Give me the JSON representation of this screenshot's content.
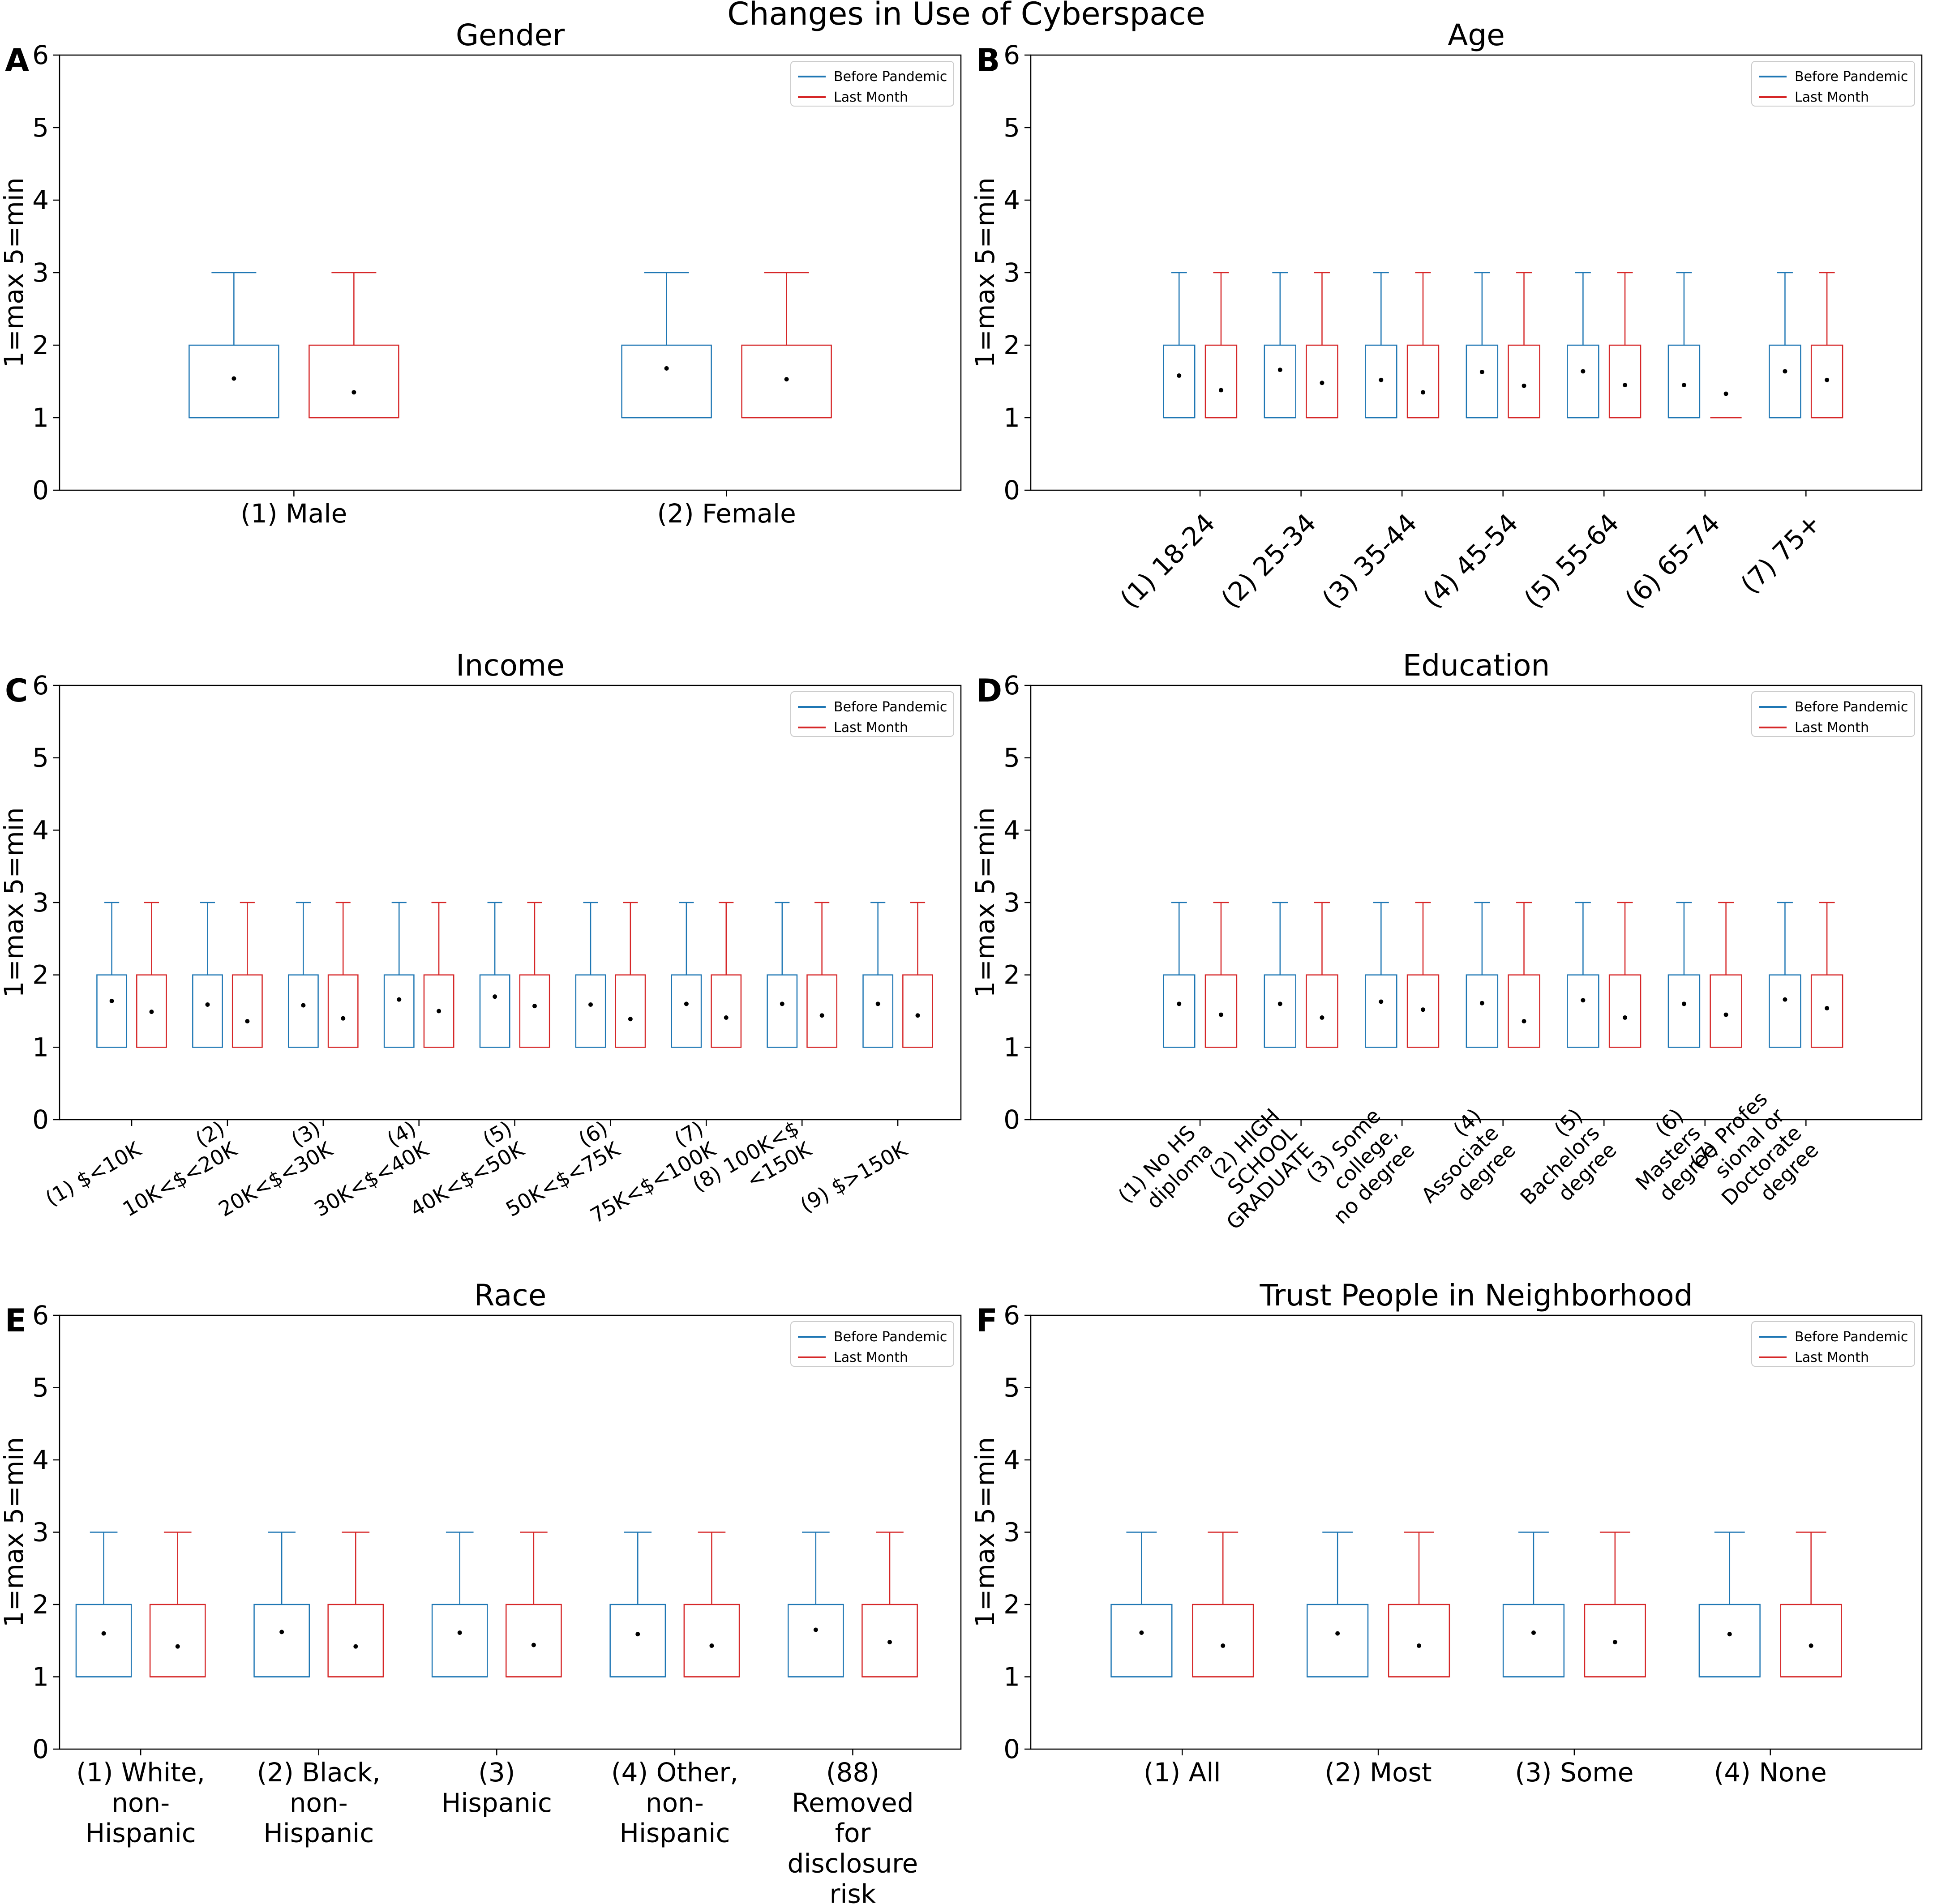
{
  "figure_title": "Changes in Use of Cyberspace",
  "colors": {
    "before": "#1f77b4",
    "last": "#d62728",
    "axis": "#000000",
    "mean_dot": "#000000"
  },
  "chart_data": [
    {
      "panel": "A",
      "type": "box",
      "title": "Gender",
      "ylabel": "1=max 5=min",
      "ylim": [
        0,
        6
      ],
      "yticks": [
        "0",
        "1",
        "2",
        "3",
        "4",
        "5",
        "6"
      ],
      "legend": {
        "placement": "top-right",
        "entries": [
          "Before Pandemic",
          "Last Month"
        ]
      },
      "tick_rotation": 0,
      "categories": [
        [
          "(1) Male"
        ],
        [
          "(2) Female"
        ]
      ],
      "series": [
        {
          "name": "Before Pandemic",
          "boxes": [
            {
              "q1": 1,
              "median": 1,
              "q3": 2,
              "whislo": 1,
              "whishi": 3,
              "mean": 1.54
            },
            {
              "q1": 1,
              "median": 1,
              "q3": 2,
              "whislo": 1,
              "whishi": 3,
              "mean": 1.68
            }
          ]
        },
        {
          "name": "Last Month",
          "boxes": [
            {
              "q1": 1,
              "median": 1,
              "q3": 2,
              "whislo": 1,
              "whishi": 3,
              "mean": 1.35
            },
            {
              "q1": 1,
              "median": 1,
              "q3": 2,
              "whislo": 1,
              "whishi": 3,
              "mean": 1.53
            }
          ]
        }
      ]
    },
    {
      "panel": "B",
      "type": "box",
      "title": "Age",
      "ylabel": "1=max 5=min",
      "ylim": [
        0,
        6
      ],
      "yticks": [
        "0",
        "1",
        "2",
        "3",
        "4",
        "5",
        "6"
      ],
      "legend": {
        "placement": "top-right",
        "entries": [
          "Before Pandemic",
          "Last Month"
        ]
      },
      "tick_rotation": -45,
      "categories": [
        [
          "(1) 18-24"
        ],
        [
          "(2) 25-34"
        ],
        [
          "(3) 35-44"
        ],
        [
          "(4) 45-54"
        ],
        [
          "(5) 55-64"
        ],
        [
          "(6) 65-74"
        ],
        [
          "(7) 75+"
        ]
      ],
      "series": [
        {
          "name": "Before Pandemic",
          "boxes": [
            {
              "q1": 1,
              "median": 1,
              "q3": 2,
              "whislo": 1,
              "whishi": 3,
              "mean": 1.58
            },
            {
              "q1": 1,
              "median": 1,
              "q3": 2,
              "whislo": 1,
              "whishi": 3,
              "mean": 1.66
            },
            {
              "q1": 1,
              "median": 1,
              "q3": 2,
              "whislo": 1,
              "whishi": 3,
              "mean": 1.52
            },
            {
              "q1": 1,
              "median": 1,
              "q3": 2,
              "whislo": 1,
              "whishi": 3,
              "mean": 1.63
            },
            {
              "q1": 1,
              "median": 1,
              "q3": 2,
              "whislo": 1,
              "whishi": 3,
              "mean": 1.64
            },
            {
              "q1": 1,
              "median": 1,
              "q3": 2,
              "whislo": 1,
              "whishi": 3,
              "mean": 1.45
            },
            {
              "q1": 1,
              "median": 1,
              "q3": 2,
              "whislo": 1,
              "whishi": 3,
              "mean": 1.64
            }
          ]
        },
        {
          "name": "Last Month",
          "boxes": [
            {
              "q1": 1,
              "median": 1,
              "q3": 2,
              "whislo": 1,
              "whishi": 3,
              "mean": 1.38
            },
            {
              "q1": 1,
              "median": 1,
              "q3": 2,
              "whislo": 1,
              "whishi": 3,
              "mean": 1.48
            },
            {
              "q1": 1,
              "median": 1,
              "q3": 2,
              "whislo": 1,
              "whishi": 3,
              "mean": 1.35
            },
            {
              "q1": 1,
              "median": 1,
              "q3": 2,
              "whislo": 1,
              "whishi": 3,
              "mean": 1.44
            },
            {
              "q1": 1,
              "median": 1,
              "q3": 2,
              "whislo": 1,
              "whishi": 3,
              "mean": 1.45
            },
            {
              "q1": 1,
              "median": 1,
              "q3": 1,
              "whislo": 1,
              "whishi": 1,
              "mean": 1.33
            },
            {
              "q1": 1,
              "median": 1,
              "q3": 2,
              "whislo": 1,
              "whishi": 3,
              "mean": 1.52
            }
          ]
        }
      ]
    },
    {
      "panel": "C",
      "type": "box",
      "title": "Income",
      "ylabel": "1=max 5=min",
      "ylim": [
        0,
        6
      ],
      "yticks": [
        "0",
        "1",
        "2",
        "3",
        "4",
        "5",
        "6"
      ],
      "legend": {
        "placement": "top-right",
        "entries": [
          "Before Pandemic",
          "Last Month"
        ]
      },
      "tick_rotation": -30,
      "categories": [
        [
          "(1) $<10K"
        ],
        [
          "(2)",
          "10K<$<20K"
        ],
        [
          "(3)",
          "20K<$<30K"
        ],
        [
          "(4)",
          "30K<$<40K"
        ],
        [
          "(5)",
          "40K<$<50K"
        ],
        [
          "(6)",
          "50K<$<75K"
        ],
        [
          "(7)",
          "75K<$<100K"
        ],
        [
          "(8) 100K<$",
          "<150K"
        ],
        [
          "(9) $>150K"
        ]
      ],
      "series": [
        {
          "name": "Before Pandemic",
          "boxes": [
            {
              "q1": 1,
              "median": 1,
              "q3": 2,
              "whislo": 1,
              "whishi": 3,
              "mean": 1.64
            },
            {
              "q1": 1,
              "median": 1,
              "q3": 2,
              "whislo": 1,
              "whishi": 3,
              "mean": 1.59
            },
            {
              "q1": 1,
              "median": 1,
              "q3": 2,
              "whislo": 1,
              "whishi": 3,
              "mean": 1.58
            },
            {
              "q1": 1,
              "median": 1,
              "q3": 2,
              "whislo": 1,
              "whishi": 3,
              "mean": 1.66
            },
            {
              "q1": 1,
              "median": 1,
              "q3": 2,
              "whislo": 1,
              "whishi": 3,
              "mean": 1.7
            },
            {
              "q1": 1,
              "median": 1,
              "q3": 2,
              "whislo": 1,
              "whishi": 3,
              "mean": 1.59
            },
            {
              "q1": 1,
              "median": 1,
              "q3": 2,
              "whislo": 1,
              "whishi": 3,
              "mean": 1.6
            },
            {
              "q1": 1,
              "median": 1,
              "q3": 2,
              "whislo": 1,
              "whishi": 3,
              "mean": 1.6
            },
            {
              "q1": 1,
              "median": 1,
              "q3": 2,
              "whislo": 1,
              "whishi": 3,
              "mean": 1.6
            }
          ]
        },
        {
          "name": "Last Month",
          "boxes": [
            {
              "q1": 1,
              "median": 1,
              "q3": 2,
              "whislo": 1,
              "whishi": 3,
              "mean": 1.49
            },
            {
              "q1": 1,
              "median": 1,
              "q3": 2,
              "whislo": 1,
              "whishi": 3,
              "mean": 1.36
            },
            {
              "q1": 1,
              "median": 1,
              "q3": 2,
              "whislo": 1,
              "whishi": 3,
              "mean": 1.4
            },
            {
              "q1": 1,
              "median": 1,
              "q3": 2,
              "whislo": 1,
              "whishi": 3,
              "mean": 1.5
            },
            {
              "q1": 1,
              "median": 1,
              "q3": 2,
              "whislo": 1,
              "whishi": 3,
              "mean": 1.57
            },
            {
              "q1": 1,
              "median": 1,
              "q3": 2,
              "whislo": 1,
              "whishi": 3,
              "mean": 1.39
            },
            {
              "q1": 1,
              "median": 1,
              "q3": 2,
              "whislo": 1,
              "whishi": 3,
              "mean": 1.41
            },
            {
              "q1": 1,
              "median": 1,
              "q3": 2,
              "whislo": 1,
              "whishi": 3,
              "mean": 1.44
            },
            {
              "q1": 1,
              "median": 1,
              "q3": 2,
              "whislo": 1,
              "whishi": 3,
              "mean": 1.44
            }
          ]
        }
      ]
    },
    {
      "panel": "D",
      "type": "box",
      "title": "Education",
      "ylabel": "1=max 5=min",
      "ylim": [
        0,
        6
      ],
      "yticks": [
        "0",
        "1",
        "2",
        "3",
        "4",
        "5",
        "6"
      ],
      "legend": {
        "placement": "top-right",
        "entries": [
          "Before Pandemic",
          "Last Month"
        ]
      },
      "tick_rotation": -45,
      "categories": [
        [
          "(1) No HS",
          "diploma"
        ],
        [
          "(2) HIGH",
          "SCHOOL",
          "GRADUATE"
        ],
        [
          "(3) Some",
          "college,",
          "no degree"
        ],
        [
          "(4)",
          "Associate",
          "degree"
        ],
        [
          "(5)",
          "Bachelors",
          "degree"
        ],
        [
          "(6)",
          "Masters",
          "degree"
        ],
        [
          "(7) Profes",
          "sional or",
          "Doctorate",
          "degree"
        ]
      ],
      "series": [
        {
          "name": "Before Pandemic",
          "boxes": [
            {
              "q1": 1,
              "median": 1,
              "q3": 2,
              "whislo": 1,
              "whishi": 3,
              "mean": 1.6
            },
            {
              "q1": 1,
              "median": 1,
              "q3": 2,
              "whislo": 1,
              "whishi": 3,
              "mean": 1.6
            },
            {
              "q1": 1,
              "median": 1,
              "q3": 2,
              "whislo": 1,
              "whishi": 3,
              "mean": 1.63
            },
            {
              "q1": 1,
              "median": 1,
              "q3": 2,
              "whislo": 1,
              "whishi": 3,
              "mean": 1.61
            },
            {
              "q1": 1,
              "median": 1,
              "q3": 2,
              "whislo": 1,
              "whishi": 3,
              "mean": 1.65
            },
            {
              "q1": 1,
              "median": 1,
              "q3": 2,
              "whislo": 1,
              "whishi": 3,
              "mean": 1.6
            },
            {
              "q1": 1,
              "median": 1,
              "q3": 2,
              "whislo": 1,
              "whishi": 3,
              "mean": 1.66
            }
          ]
        },
        {
          "name": "Last Month",
          "boxes": [
            {
              "q1": 1,
              "median": 1,
              "q3": 2,
              "whislo": 1,
              "whishi": 3,
              "mean": 1.45
            },
            {
              "q1": 1,
              "median": 1,
              "q3": 2,
              "whislo": 1,
              "whishi": 3,
              "mean": 1.41
            },
            {
              "q1": 1,
              "median": 1,
              "q3": 2,
              "whislo": 1,
              "whishi": 3,
              "mean": 1.52
            },
            {
              "q1": 1,
              "median": 1,
              "q3": 2,
              "whislo": 1,
              "whishi": 3,
              "mean": 1.36
            },
            {
              "q1": 1,
              "median": 1,
              "q3": 2,
              "whislo": 1,
              "whishi": 3,
              "mean": 1.41
            },
            {
              "q1": 1,
              "median": 1,
              "q3": 2,
              "whislo": 1,
              "whishi": 3,
              "mean": 1.45
            },
            {
              "q1": 1,
              "median": 1,
              "q3": 2,
              "whislo": 1,
              "whishi": 3,
              "mean": 1.54
            }
          ]
        }
      ]
    },
    {
      "panel": "E",
      "type": "box",
      "title": "Race",
      "ylabel": "1=max 5=min",
      "ylim": [
        0,
        6
      ],
      "yticks": [
        "0",
        "1",
        "2",
        "3",
        "4",
        "5",
        "6"
      ],
      "legend": {
        "placement": "top-right",
        "entries": [
          "Before Pandemic",
          "Last Month"
        ]
      },
      "tick_rotation": 0,
      "categories": [
        [
          "(1) White,",
          "non-",
          "Hispanic"
        ],
        [
          "(2) Black,",
          "non-",
          "Hispanic"
        ],
        [
          "(3)",
          "Hispanic"
        ],
        [
          "(4) Other,",
          "non-",
          "Hispanic"
        ],
        [
          "(88)",
          "Removed",
          "for",
          "disclosure",
          "risk"
        ]
      ],
      "series": [
        {
          "name": "Before Pandemic",
          "boxes": [
            {
              "q1": 1,
              "median": 1,
              "q3": 2,
              "whislo": 1,
              "whishi": 3,
              "mean": 1.6
            },
            {
              "q1": 1,
              "median": 1,
              "q3": 2,
              "whislo": 1,
              "whishi": 3,
              "mean": 1.62
            },
            {
              "q1": 1,
              "median": 1,
              "q3": 2,
              "whislo": 1,
              "whishi": 3,
              "mean": 1.61
            },
            {
              "q1": 1,
              "median": 1,
              "q3": 2,
              "whislo": 1,
              "whishi": 3,
              "mean": 1.59
            },
            {
              "q1": 1,
              "median": 1,
              "q3": 2,
              "whislo": 1,
              "whishi": 3,
              "mean": 1.65
            }
          ]
        },
        {
          "name": "Last Month",
          "boxes": [
            {
              "q1": 1,
              "median": 1,
              "q3": 2,
              "whislo": 1,
              "whishi": 3,
              "mean": 1.42
            },
            {
              "q1": 1,
              "median": 1,
              "q3": 2,
              "whislo": 1,
              "whishi": 3,
              "mean": 1.42
            },
            {
              "q1": 1,
              "median": 1,
              "q3": 2,
              "whislo": 1,
              "whishi": 3,
              "mean": 1.44
            },
            {
              "q1": 1,
              "median": 1,
              "q3": 2,
              "whislo": 1,
              "whishi": 3,
              "mean": 1.43
            },
            {
              "q1": 1,
              "median": 1,
              "q3": 2,
              "whislo": 1,
              "whishi": 3,
              "mean": 1.48
            }
          ]
        }
      ]
    },
    {
      "panel": "F",
      "type": "box",
      "title": "Trust People in Neighborhood",
      "ylabel": "1=max 5=min",
      "ylim": [
        0,
        6
      ],
      "yticks": [
        "0",
        "1",
        "2",
        "3",
        "4",
        "5",
        "6"
      ],
      "legend": {
        "placement": "top-right",
        "entries": [
          "Before Pandemic",
          "Last Month"
        ]
      },
      "tick_rotation": 0,
      "categories": [
        [
          "(1) All"
        ],
        [
          "(2) Most"
        ],
        [
          "(3) Some"
        ],
        [
          "(4) None"
        ]
      ],
      "series": [
        {
          "name": "Before Pandemic",
          "boxes": [
            {
              "q1": 1,
              "median": 1,
              "q3": 2,
              "whislo": 1,
              "whishi": 3,
              "mean": 1.61
            },
            {
              "q1": 1,
              "median": 1,
              "q3": 2,
              "whislo": 1,
              "whishi": 3,
              "mean": 1.6
            },
            {
              "q1": 1,
              "median": 1,
              "q3": 2,
              "whislo": 1,
              "whishi": 3,
              "mean": 1.61
            },
            {
              "q1": 1,
              "median": 1,
              "q3": 2,
              "whislo": 1,
              "whishi": 3,
              "mean": 1.59
            }
          ]
        },
        {
          "name": "Last Month",
          "boxes": [
            {
              "q1": 1,
              "median": 1,
              "q3": 2,
              "whislo": 1,
              "whishi": 3,
              "mean": 1.43
            },
            {
              "q1": 1,
              "median": 1,
              "q3": 2,
              "whislo": 1,
              "whishi": 3,
              "mean": 1.43
            },
            {
              "q1": 1,
              "median": 1,
              "q3": 2,
              "whislo": 1,
              "whishi": 3,
              "mean": 1.48
            },
            {
              "q1": 1,
              "median": 1,
              "q3": 2,
              "whislo": 1,
              "whishi": 3,
              "mean": 1.43
            }
          ]
        }
      ]
    }
  ]
}
